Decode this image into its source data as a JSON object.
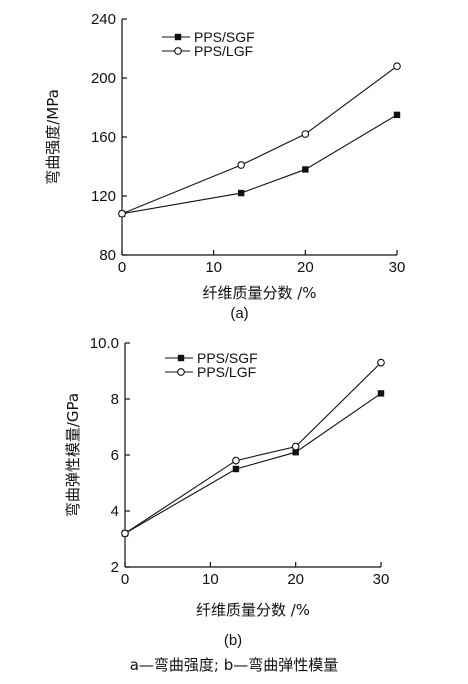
{
  "caption": "a—弯曲强度; b—弯曲弹性模量",
  "chart_data": [
    {
      "type": "line",
      "panel_label": "(a)",
      "xlabel": "纤维质量分数 /%",
      "ylabel": "弯曲强度/MPa",
      "xlim": [
        0,
        30
      ],
      "ylim": [
        80,
        240
      ],
      "xticks": [
        0,
        10,
        20,
        30
      ],
      "yticks": [
        80,
        120,
        160,
        200,
        240
      ],
      "legend_position": "top-left",
      "grid": false,
      "series": [
        {
          "name": "PPS/SGF",
          "marker": "filled-square",
          "x": [
            0,
            13,
            20,
            30
          ],
          "y": [
            108,
            122,
            138,
            175
          ]
        },
        {
          "name": "PPS/LGF",
          "marker": "open-circle",
          "x": [
            0,
            13,
            20,
            30
          ],
          "y": [
            108,
            141,
            162,
            208
          ]
        }
      ]
    },
    {
      "type": "line",
      "panel_label": "(b)",
      "xlabel": "纤维质量分数 /%",
      "ylabel": "弯曲弹性模量/GPa",
      "xlim": [
        0,
        30
      ],
      "ylim": [
        2,
        10
      ],
      "xticks": [
        0,
        10,
        20,
        30
      ],
      "yticks": [
        2,
        4,
        6,
        8,
        10
      ],
      "ytick_labels": [
        "2",
        "4",
        "6",
        "8",
        "10.0"
      ],
      "legend_position": "top-left",
      "grid": false,
      "series": [
        {
          "name": "PPS/SGF",
          "marker": "filled-square",
          "x": [
            0,
            13,
            20,
            30
          ],
          "y": [
            3.2,
            5.5,
            6.1,
            8.2
          ]
        },
        {
          "name": "PPS/LGF",
          "marker": "open-circle",
          "x": [
            0,
            13,
            20,
            30
          ],
          "y": [
            3.2,
            5.8,
            6.3,
            9.3
          ]
        }
      ]
    }
  ]
}
